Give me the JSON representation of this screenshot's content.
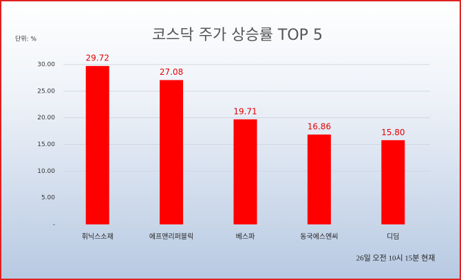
{
  "chart_data": {
    "type": "bar",
    "title": "코스닥 주가 상승률 TOP 5",
    "unit_label": "단위: %",
    "categories": [
      "휘닉스소재",
      "에프앤리퍼블릭",
      "베스파",
      "동국에스엔씨",
      "디딤"
    ],
    "values": [
      29.72,
      27.08,
      19.71,
      16.86,
      15.8
    ],
    "value_labels": [
      "29.72",
      "27.08",
      "19.71",
      "16.86",
      "15.80"
    ],
    "color": "#ff0000",
    "ylim": [
      0,
      30
    ],
    "yticks": [
      {
        "value": 0,
        "label": "-"
      },
      {
        "value": 5,
        "label": "5.00"
      },
      {
        "value": 10,
        "label": "10.00"
      },
      {
        "value": 15,
        "label": "15.00"
      },
      {
        "value": 20,
        "label": "20.00"
      },
      {
        "value": 25,
        "label": "25.00"
      },
      {
        "value": 30,
        "label": "30.00"
      }
    ],
    "grid": true,
    "annotation": "26일 오전 10시 15분 현재"
  }
}
